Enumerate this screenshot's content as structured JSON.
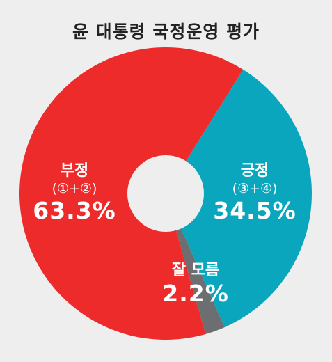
{
  "chart_data": {
    "type": "pie",
    "title": "윤 대통령 국정운영 평가",
    "donut": true,
    "slices": [
      {
        "label": "긍정",
        "sublabel": "(③+④)",
        "value": 34.5,
        "value_text": "34.5%",
        "color": "#0aa6be"
      },
      {
        "label": "잘 모름",
        "sublabel": "",
        "value": 2.2,
        "value_text": "2.2%",
        "color": "#6d6e71"
      },
      {
        "label": "부정",
        "sublabel": "(①+②)",
        "value": 63.3,
        "value_text": "63.3%",
        "color": "#ee2b2b"
      }
    ]
  }
}
